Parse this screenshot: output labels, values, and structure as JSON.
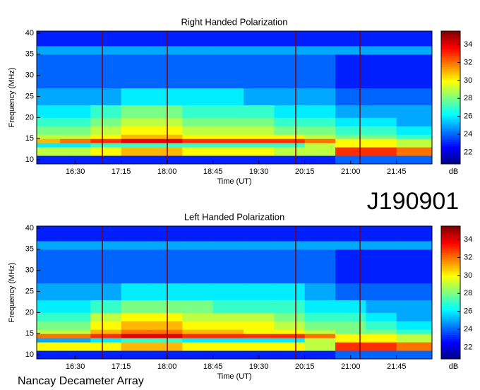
{
  "chart_data": [
    {
      "type": "heatmap",
      "title": "Right Handed Polarization",
      "x_label": "Time (UT)",
      "y_label": "Frequency (MHz)",
      "colorbar_label": "dB",
      "colormap": "jet",
      "xlim": [
        15.87,
        22.33
      ],
      "ylim": [
        9,
        40.5
      ],
      "zlim": [
        20.7,
        35.5
      ],
      "xticks": [
        {
          "value": 16.5,
          "label": "16:30"
        },
        {
          "value": 17.25,
          "label": "17:15"
        },
        {
          "value": 18,
          "label": "18:00"
        },
        {
          "value": 18.75,
          "label": "18:45"
        },
        {
          "value": 19.5,
          "label": "19:30"
        },
        {
          "value": 20.25,
          "label": "20:15"
        },
        {
          "value": 21,
          "label": "21:00"
        },
        {
          "value": 21.75,
          "label": "21:45"
        }
      ],
      "yticks": [
        10,
        15,
        20,
        25,
        30,
        35,
        40
      ],
      "zticks": [
        22,
        24,
        26,
        28,
        30,
        32,
        34
      ],
      "x_bins": [
        15.87,
        16.25,
        16.75,
        17.25,
        17.75,
        18.25,
        18.75,
        19.25,
        19.75,
        20.25,
        20.75,
        21.25,
        21.75,
        22.33
      ],
      "y_bins": [
        9,
        11,
        13,
        14,
        15,
        16,
        18,
        20,
        23,
        27,
        35,
        37,
        40.5
      ],
      "values": [
        [
          23,
          23,
          23,
          23,
          23,
          23,
          23,
          23,
          23,
          23,
          24,
          24,
          24
        ],
        [
          29,
          29,
          30,
          31,
          31,
          30,
          30,
          30,
          29,
          29,
          33,
          33,
          32
        ],
        [
          26,
          26,
          27,
          27,
          27,
          27,
          27,
          27,
          27,
          29,
          30,
          30,
          29
        ],
        [
          31,
          32,
          33,
          34,
          34,
          33,
          33,
          33,
          33,
          32,
          30,
          30,
          29
        ],
        [
          29,
          29,
          30,
          31,
          31,
          30,
          30,
          30,
          30,
          29,
          28,
          28,
          27
        ],
        [
          28,
          28,
          29,
          30,
          30,
          29,
          29,
          29,
          28,
          28,
          27,
          27,
          26
        ],
        [
          27,
          27,
          28,
          29,
          29,
          28,
          28,
          28,
          27,
          27,
          26,
          26,
          25
        ],
        [
          26,
          26,
          27,
          28,
          28,
          27,
          27,
          27,
          26,
          26,
          25,
          25,
          25
        ],
        [
          25,
          25,
          25,
          26,
          26,
          26,
          26,
          25,
          25,
          25,
          24,
          24,
          24
        ],
        [
          24,
          24,
          24,
          24,
          24,
          24,
          24,
          24,
          24,
          24,
          23,
          23,
          23
        ],
        [
          25,
          25,
          25,
          25,
          25,
          25,
          25,
          25,
          25,
          25,
          25,
          25,
          25
        ],
        [
          23,
          23,
          23,
          23,
          23,
          23,
          23,
          23,
          23,
          23,
          23,
          23,
          23
        ]
      ]
    },
    {
      "type": "heatmap",
      "title": "Left Handed Polarization",
      "x_label": "Time (UT)",
      "y_label": "Frequency (MHz)",
      "colorbar_label": "dB",
      "colormap": "jet",
      "xlim": [
        15.87,
        22.33
      ],
      "ylim": [
        9,
        40.5
      ],
      "zlim": [
        20.7,
        35.5
      ],
      "xticks": [
        {
          "value": 16.5,
          "label": "16:30"
        },
        {
          "value": 17.25,
          "label": "17:15"
        },
        {
          "value": 18,
          "label": "18:00"
        },
        {
          "value": 18.75,
          "label": "18:45"
        },
        {
          "value": 19.5,
          "label": "19:30"
        },
        {
          "value": 20.25,
          "label": "20:15"
        },
        {
          "value": 21,
          "label": "21:00"
        },
        {
          "value": 21.75,
          "label": "21:45"
        }
      ],
      "yticks": [
        10,
        15,
        20,
        25,
        30,
        35,
        40
      ],
      "zticks": [
        22,
        24,
        26,
        28,
        30,
        32,
        34
      ],
      "x_bins": [
        15.87,
        16.25,
        16.75,
        17.25,
        17.75,
        18.25,
        18.75,
        19.25,
        19.75,
        20.25,
        20.75,
        21.25,
        21.75,
        22.33
      ],
      "y_bins": [
        9,
        11,
        13,
        14,
        15,
        16,
        18,
        20,
        23,
        27,
        35,
        37,
        40.5
      ],
      "values": [
        [
          23,
          23,
          23,
          23,
          23,
          23,
          23,
          23,
          23,
          23,
          24,
          24,
          24
        ],
        [
          30,
          30,
          30,
          31,
          31,
          30,
          30,
          30,
          30,
          29,
          33,
          33,
          32
        ],
        [
          25,
          25,
          26,
          27,
          27,
          26,
          26,
          26,
          26,
          29,
          30,
          30,
          29
        ],
        [
          32,
          32,
          33,
          34,
          34,
          33,
          33,
          33,
          33,
          32,
          30,
          30,
          29
        ],
        [
          29,
          29,
          31,
          32,
          32,
          31,
          31,
          30,
          30,
          29,
          28,
          28,
          27
        ],
        [
          28,
          28,
          30,
          31,
          31,
          30,
          30,
          30,
          29,
          28,
          28,
          27,
          26
        ],
        [
          27,
          27,
          29,
          30,
          30,
          29,
          29,
          29,
          28,
          27,
          27,
          26,
          25
        ],
        [
          26,
          26,
          27,
          28,
          28,
          28,
          27,
          27,
          27,
          26,
          26,
          25,
          25
        ],
        [
          25,
          25,
          25,
          26,
          26,
          26,
          26,
          26,
          26,
          25,
          24,
          24,
          24
        ],
        [
          24,
          24,
          24,
          24,
          24,
          24,
          24,
          24,
          24,
          24,
          23,
          23,
          23
        ],
        [
          25,
          25,
          25,
          25,
          25,
          25,
          25,
          25,
          25,
          25,
          25,
          25,
          25
        ],
        [
          23,
          23,
          23,
          23,
          23,
          23,
          23,
          23,
          23,
          23,
          23,
          23,
          23
        ]
      ]
    }
  ],
  "label": "J190901",
  "footer": "Nancay Decameter Array"
}
